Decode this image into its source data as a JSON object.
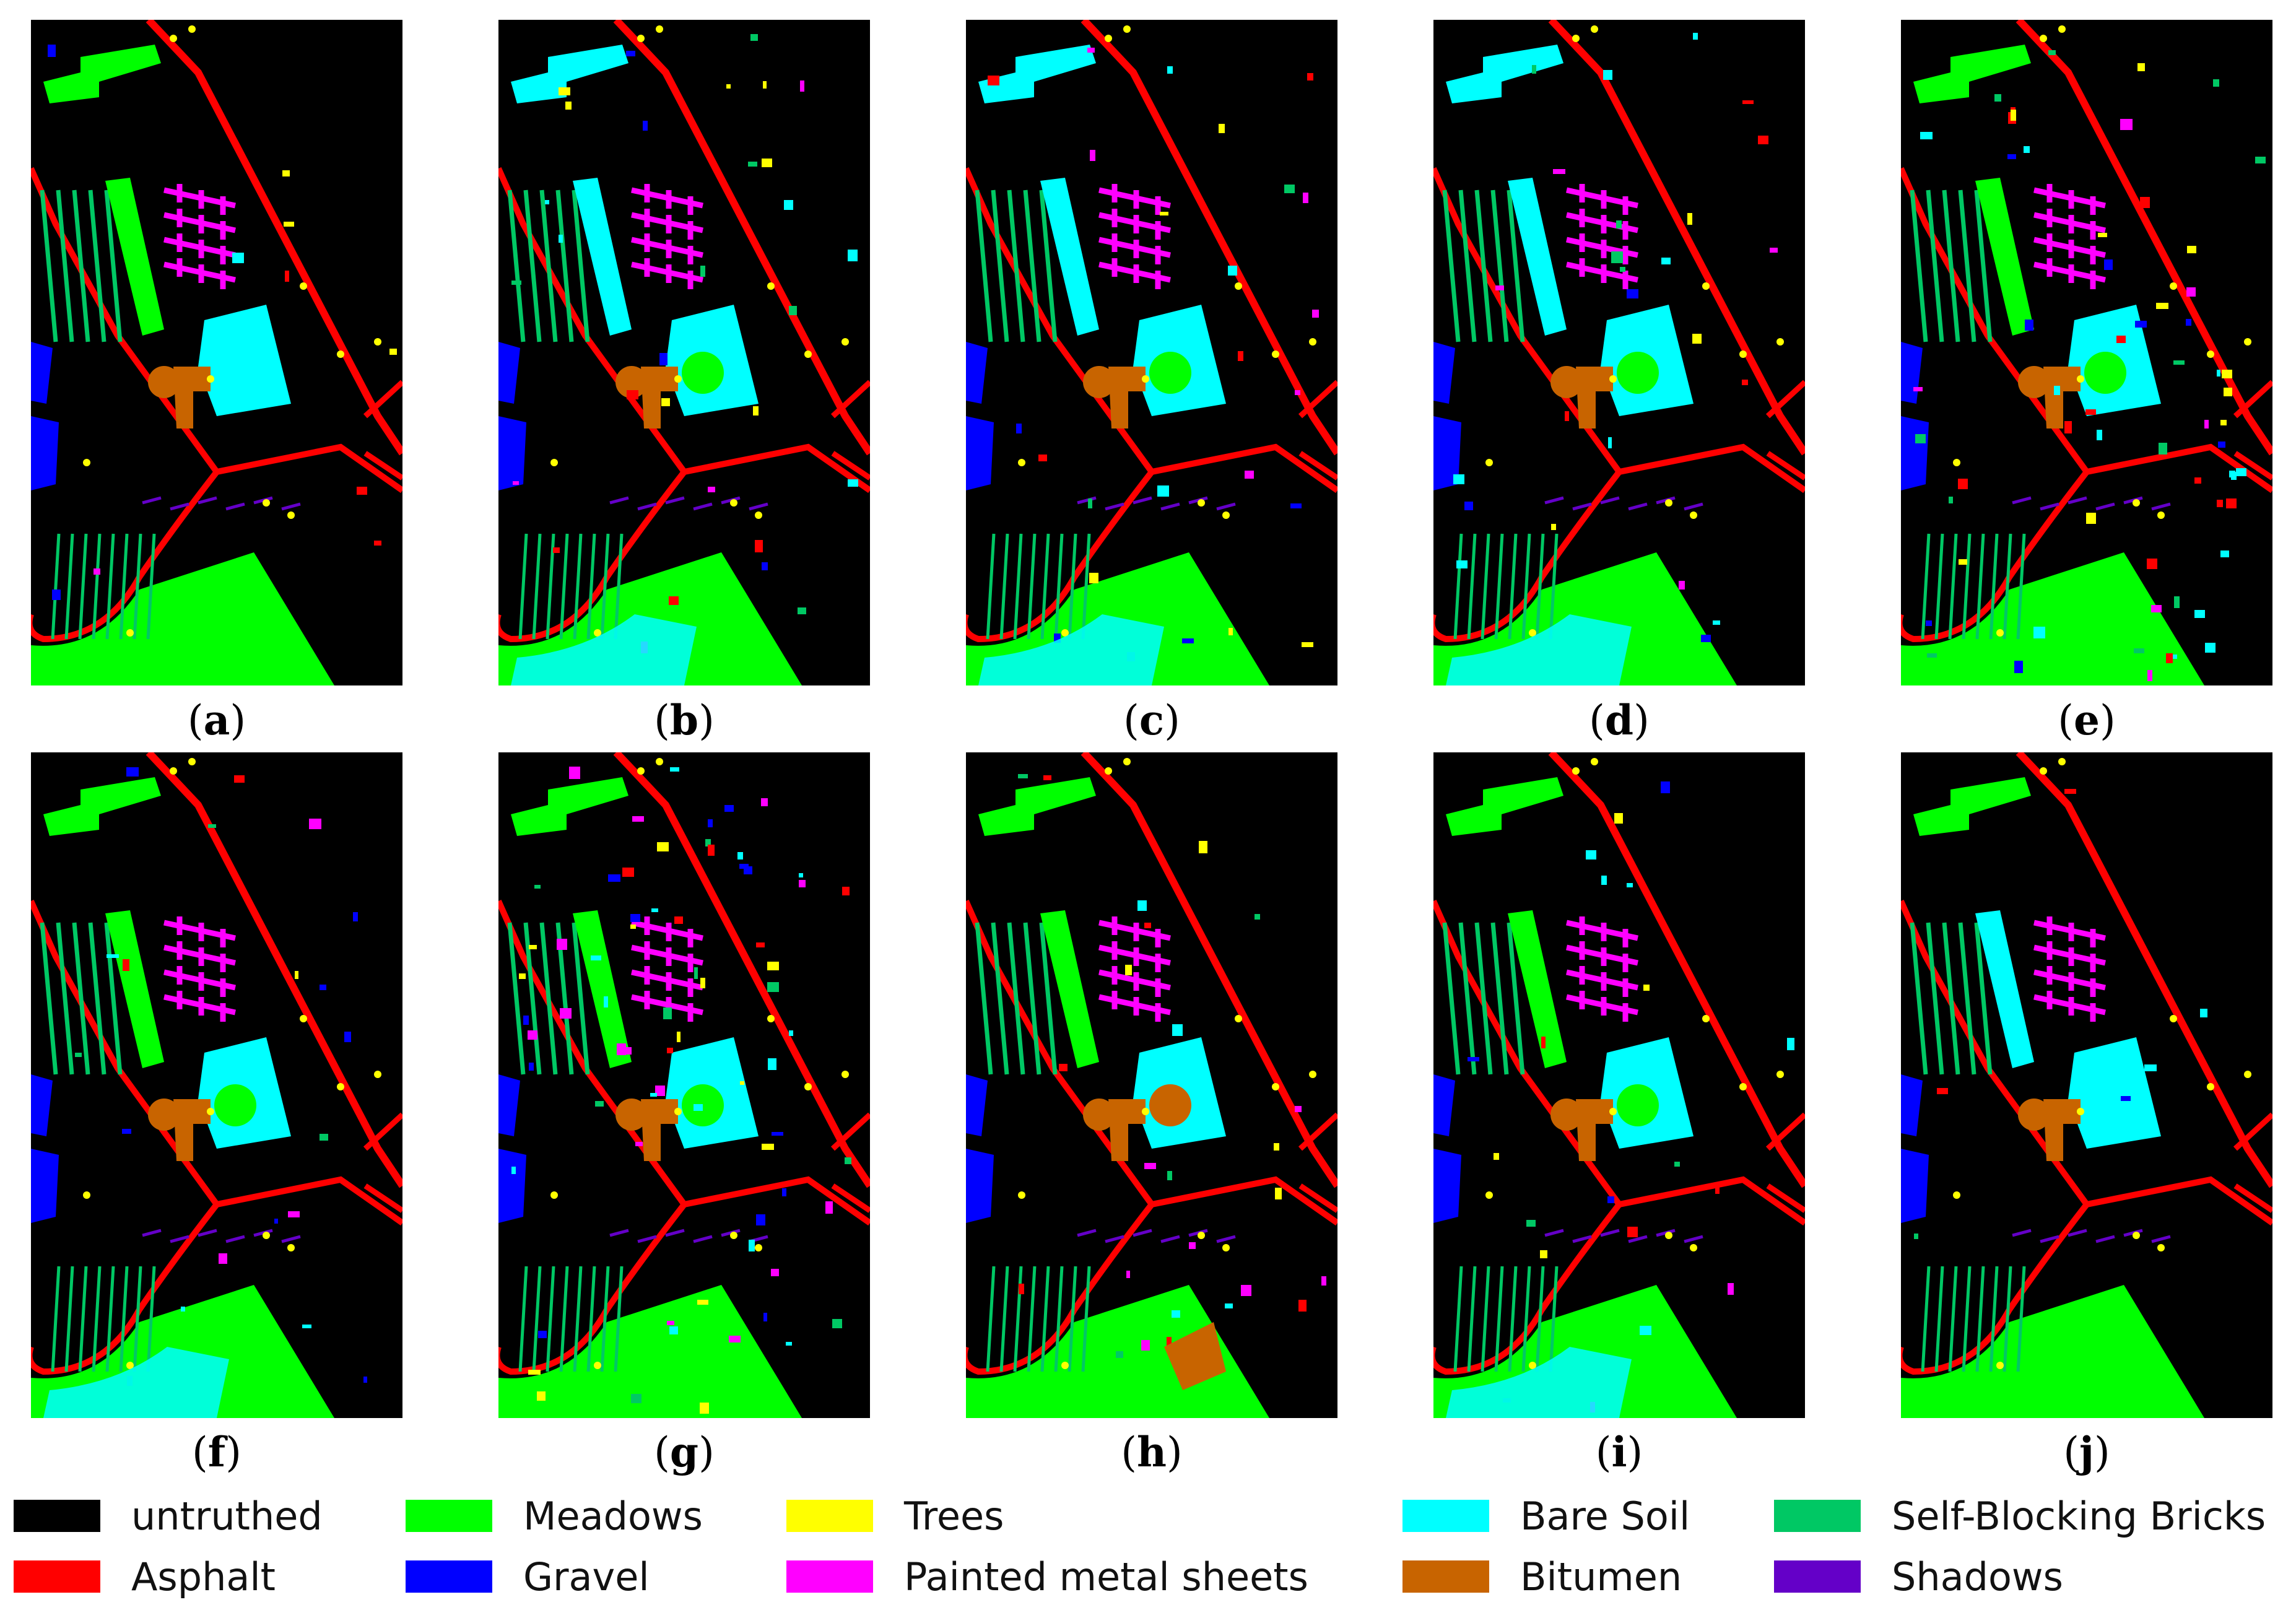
{
  "figure": {
    "panels": [
      {
        "id": "a",
        "label": "a",
        "variant": "ground-truth"
      },
      {
        "id": "b",
        "label": "b",
        "variant": "soil-heavy"
      },
      {
        "id": "c",
        "label": "c",
        "variant": "bare-mix"
      },
      {
        "id": "d",
        "label": "d",
        "variant": "bare-mix"
      },
      {
        "id": "e",
        "label": "e",
        "variant": "noisy"
      },
      {
        "id": "f",
        "label": "f",
        "variant": "meadow-soil"
      },
      {
        "id": "g",
        "label": "g",
        "variant": "noisy-blue"
      },
      {
        "id": "h",
        "label": "h",
        "variant": "bitumen"
      },
      {
        "id": "i",
        "label": "i",
        "variant": "meadow-soil"
      },
      {
        "id": "j",
        "label": "j",
        "variant": "clean"
      }
    ]
  },
  "legend": {
    "items": [
      {
        "label": "untruthed",
        "color": "#000000"
      },
      {
        "label": "Meadows",
        "color": "#00ff00"
      },
      {
        "label": "Trees",
        "color": "#ffff00"
      },
      {
        "label": "Bare Soil",
        "color": "#00ffff"
      },
      {
        "label": "Self-Blocking Bricks",
        "color": "#00c864"
      },
      {
        "label": "Asphalt",
        "color": "#ff0000"
      },
      {
        "label": "Gravel",
        "color": "#0000ff"
      },
      {
        "label": "Painted metal sheets",
        "color": "#ff00ff"
      },
      {
        "label": "Bitumen",
        "color": "#c86400"
      },
      {
        "label": "Shadows",
        "color": "#6400c8"
      }
    ]
  }
}
